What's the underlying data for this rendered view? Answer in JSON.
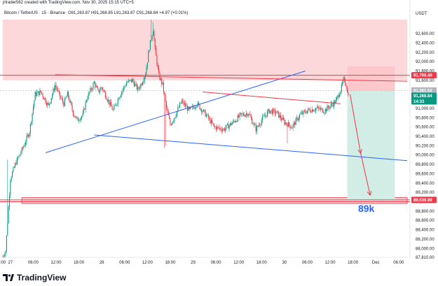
{
  "header": {
    "creator_line": "jrtrader562 created with TradingView.com, Nov 30, 2025 15:15 UTC+5"
  },
  "brand": {
    "label": "TradingView",
    "logo_icon": "tradingview-logo-icon"
  },
  "colors": {
    "up": "#089981",
    "down": "#f23645",
    "zone": "#fdd8da",
    "trend_blue": "#2962ff",
    "trend_red": "#f23645",
    "target_green": "#d1ede6",
    "risk_red": "#fcc8cc",
    "label_blue": "#2962ff"
  },
  "chart_data": {
    "type": "candlestick",
    "legend": {
      "symbol": "Bitcoin / TetherUS · 15 · Binance",
      "ohlc": "O91,263.87 H91,268.85 L91,263.87 C91,268.84 +4.97 (+0.01%)"
    },
    "y_axis": {
      "unit": "USDT",
      "range": [
        87810,
        92900
      ],
      "ticks": [
        92600,
        92400,
        92200,
        92000,
        91800,
        91600,
        91400,
        91200,
        91000,
        90800,
        90600,
        90400,
        90200,
        90000,
        89800,
        89600,
        89400,
        89200,
        89000,
        88800,
        88600,
        88400,
        88200,
        88000,
        87810
      ],
      "tick_labels": [
        "92,600.00",
        "92,400.00",
        "92,200.00",
        "92,000.00",
        "91,800.00",
        "91,600.00",
        "91,400.00",
        "91,200.00",
        "91,000.00",
        "90,800.00",
        "90,600.00",
        "90,400.00",
        "90,200.00",
        "90,000.00",
        "89,800.00",
        "89,600.00",
        "89,400.00",
        "89,200.00",
        "89,000.00",
        "88,800.00",
        "88,600.00",
        "88,400.00",
        "88,200.00",
        "88,000.00",
        "87,810.00"
      ]
    },
    "x_axis": {
      "ticks": [
        {
          "i": 0,
          "label": ":00"
        },
        {
          "i": 8,
          "label": "27"
        },
        {
          "i": 32,
          "label": "06:00"
        },
        {
          "i": 56,
          "label": "12:00"
        },
        {
          "i": 80,
          "label": "18:00"
        },
        {
          "i": 104,
          "label": "28"
        },
        {
          "i": 128,
          "label": "06:00"
        },
        {
          "i": 152,
          "label": "12:00"
        },
        {
          "i": 176,
          "label": "18:00"
        },
        {
          "i": 200,
          "label": "29"
        },
        {
          "i": 224,
          "label": "06:00"
        },
        {
          "i": 248,
          "label": "12:00"
        },
        {
          "i": 272,
          "label": "18:00"
        },
        {
          "i": 296,
          "label": "30"
        },
        {
          "i": 320,
          "label": "06:00"
        },
        {
          "i": 344,
          "label": "12:00"
        },
        {
          "i": 368,
          "label": "18:00"
        },
        {
          "i": 392,
          "label": "Dec"
        },
        {
          "i": 416,
          "label": "06:00"
        }
      ]
    },
    "price_tags": [
      {
        "value": 91708.4,
        "label": "91,708.40",
        "color": "#f23645"
      },
      {
        "value": 91381.52,
        "label": "91,381.52",
        "color": "#b2b5be"
      },
      {
        "value": 91268.84,
        "label": "91,268.84",
        "color": "#089981"
      },
      {
        "value": 91268.84,
        "label": "14:33",
        "color": "#089981",
        "sub": true
      },
      {
        "value": 89039.89,
        "label": "89,039.89",
        "color": "#f23645"
      }
    ],
    "supply_zone": {
      "from_i": 0,
      "to_i": 425,
      "low": 91600,
      "high": 92900
    },
    "horizontal_lines": [
      {
        "value": 91708.4,
        "color": "#f23645"
      },
      {
        "value": 91381.52,
        "color": "#b2b5be"
      },
      {
        "value": 89039.89,
        "color": "#f23645"
      },
      {
        "value": 89000,
        "color": "#f23645"
      }
    ],
    "demand_band": {
      "from_i": 20,
      "to_i": 425,
      "low": 88960,
      "high": 89090
    },
    "trendlines": [
      {
        "from": [
          45,
          90050
        ],
        "to": [
          318,
          91800
        ],
        "color": "#2962ff"
      },
      {
        "from": [
          96,
          90430
        ],
        "to": [
          425,
          89880
        ],
        "color": "#2962ff"
      },
      {
        "from": [
          55,
          91720
        ],
        "to": [
          425,
          91580
        ],
        "color": "#f23645"
      },
      {
        "from": [
          210,
          91350
        ],
        "to": [
          355,
          91100
        ],
        "color": "#f23645"
      }
    ],
    "position": {
      "from_i": 362,
      "to_i": 412,
      "entry": 91381.52,
      "stop": 91900,
      "target": 89000
    },
    "arrows": [
      {
        "from": [
          365,
          91300
        ],
        "to": [
          376,
          90050
        ]
      },
      {
        "from": [
          376,
          90050
        ],
        "to": [
          386,
          89150
        ]
      }
    ],
    "annotations": [
      {
        "text": "89k",
        "i": 382,
        "value": 88870
      }
    ],
    "candles": []
  }
}
